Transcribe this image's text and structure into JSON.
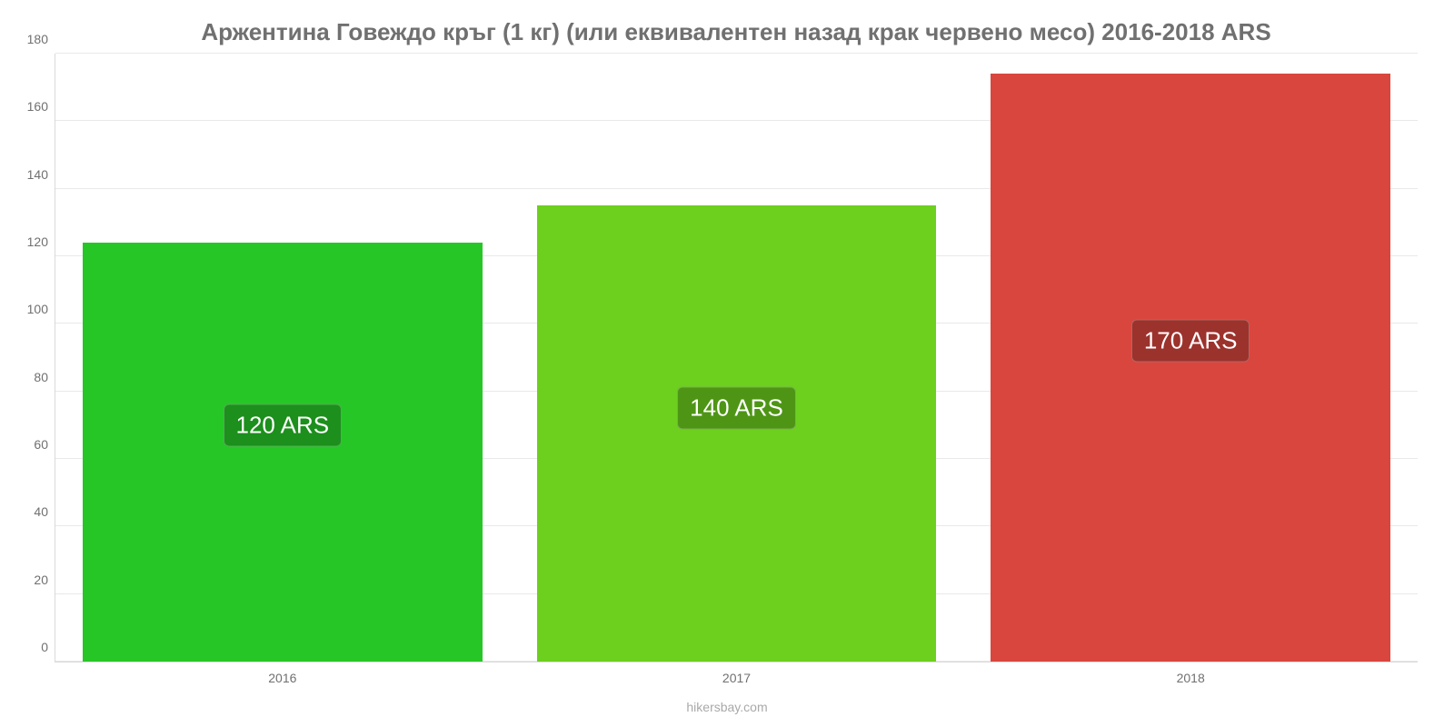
{
  "chart": {
    "type": "bar",
    "title": "Аржентина Говеждо кръг (1 кг) (или еквивалентен назад крак червено месо) 2016-2018 ARS",
    "title_color": "#707070",
    "title_fontsize": 26,
    "background_color": "#ffffff",
    "grid_color": "#e9e9e9",
    "axis_color": "#d9d9d9",
    "tick_color": "#707070",
    "tick_fontsize": 14,
    "ylim": [
      0,
      180
    ],
    "ytick_step": 20,
    "y_ticks": [
      0,
      20,
      40,
      60,
      80,
      100,
      120,
      140,
      160,
      180
    ],
    "bar_width_ratio": 0.88,
    "bar_label_fontsize": 26,
    "bar_label_text_color": "#ffffff",
    "bar_label_background": "rgba(0,0,0,0.28)",
    "categories": [
      "2016",
      "2017",
      "2018"
    ],
    "series": [
      {
        "category": "2016",
        "value": 124,
        "label": "120 ARS",
        "bar_color": "#27c627",
        "label_vertical_center": 70
      },
      {
        "category": "2017",
        "value": 135,
        "label": "140 ARS",
        "bar_color": "#6dcf1e",
        "label_vertical_center": 75
      },
      {
        "category": "2018",
        "value": 174,
        "label": "170 ARS",
        "bar_color": "#d9463e",
        "label_vertical_center": 95
      }
    ],
    "attribution": "hikersbay.com",
    "attribution_color": "#a9a9a9",
    "attribution_fontsize": 14
  }
}
